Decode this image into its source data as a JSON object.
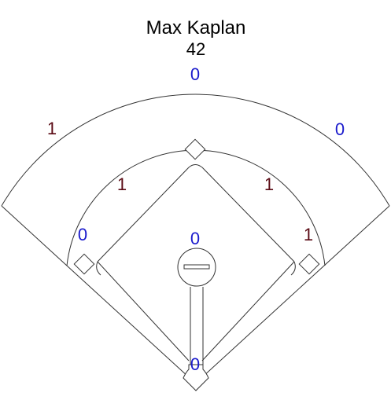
{
  "player": {
    "name": "Max Kaplan",
    "number": "42"
  },
  "zones": {
    "center_field": "0",
    "left_field": "1",
    "right_field": "0",
    "shortstop": "1",
    "second_base": "1",
    "third_base": "0",
    "first_base": "1",
    "pitcher": "0",
    "catcher": "0"
  },
  "colors": {
    "positive": "#5a0a14",
    "zero": "#1a1acc",
    "line": "#333333"
  }
}
